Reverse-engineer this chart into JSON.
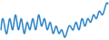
{
  "values": [
    5,
    7,
    4,
    8,
    5,
    9,
    5,
    8,
    4,
    7,
    5,
    8,
    5,
    9,
    6,
    8,
    5,
    7,
    4,
    6,
    4,
    5,
    3,
    5,
    6,
    5,
    7,
    5,
    8,
    6,
    8,
    7,
    9,
    8,
    10,
    9,
    11,
    12
  ],
  "line_color": "#2e86c8",
  "bg_color": "#ffffff",
  "linewidth": 1.1
}
